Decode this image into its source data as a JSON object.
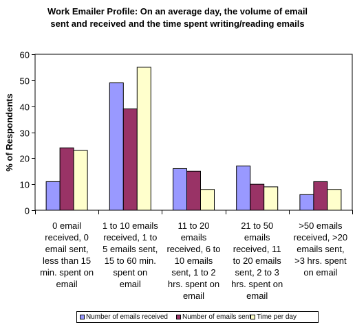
{
  "chart_data": {
    "type": "bar",
    "title_lines": [
      "Work Emailer Profile: On an average day, the volume of email",
      "sent and received and the time spent writing/reading emails"
    ],
    "ylabel": "% of Respondents",
    "xlabel": "",
    "ylim": [
      0,
      60
    ],
    "yticks": [
      0,
      10,
      20,
      30,
      40,
      50,
      60
    ],
    "grid": false,
    "legend_position": "bottom",
    "categories": [
      [
        "0 email",
        "received, 0",
        "email sent,",
        "less than 15",
        "min. spent on",
        "email"
      ],
      [
        "1 to 10 emails",
        "received, 1 to",
        "5 emails sent,",
        "15 to 60 min.",
        "spent on",
        "email"
      ],
      [
        "11 to 20",
        "emails",
        "received, 6 to",
        "10 emails",
        "sent, 1 to 2",
        "hrs. spent on",
        "email"
      ],
      [
        "21 to 50",
        "emails",
        "received, 11",
        "to 20 emails",
        "sent, 2 to 3",
        "hrs. spent on",
        "email"
      ],
      [
        ">50 emails",
        "received, >20",
        "emails sent,",
        ">3 hrs. spent",
        "on email"
      ]
    ],
    "series": [
      {
        "name": "Number of emails received",
        "color": "#9999FF",
        "values": [
          11,
          49,
          16,
          17,
          6
        ]
      },
      {
        "name": "Number of emails sent",
        "color": "#993366",
        "values": [
          24,
          39,
          15,
          10,
          11
        ]
      },
      {
        "name": "Time per day",
        "color": "#FFFFCC",
        "values": [
          23,
          55,
          8,
          9,
          8
        ]
      }
    ]
  }
}
